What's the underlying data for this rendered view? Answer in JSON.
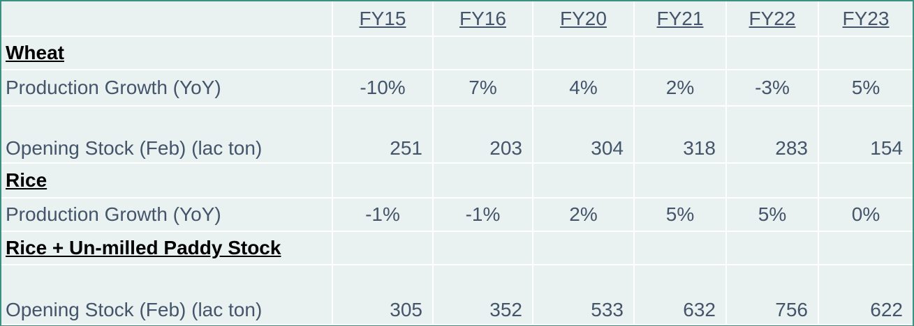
{
  "table": {
    "columns": [
      "FY15",
      "FY16",
      "FY20",
      "FY21",
      "FY22",
      "FY23"
    ],
    "sections": [
      {
        "title": "Wheat",
        "rows": [
          {
            "label": "Production Growth (YoY)",
            "values": [
              "-10%",
              "7%",
              "4%",
              "2%",
              "-3%",
              "5%"
            ]
          },
          {
            "label": "Opening Stock (Feb) (lac ton)",
            "values": [
              "251",
              "203",
              "304",
              "318",
              "283",
              "154"
            ]
          }
        ]
      },
      {
        "title": "Rice",
        "rows": [
          {
            "label": "Production Growth (YoY)",
            "values": [
              "-1%",
              "-1%",
              "2%",
              "5%",
              "5%",
              "0%"
            ]
          }
        ]
      },
      {
        "title": "Rice + Un-milled Paddy Stock",
        "rows": [
          {
            "label": "Opening Stock (Feb) (lac ton)",
            "values": [
              "305",
              "352",
              "533",
              "632",
              "756",
              "622"
            ]
          }
        ]
      }
    ]
  }
}
